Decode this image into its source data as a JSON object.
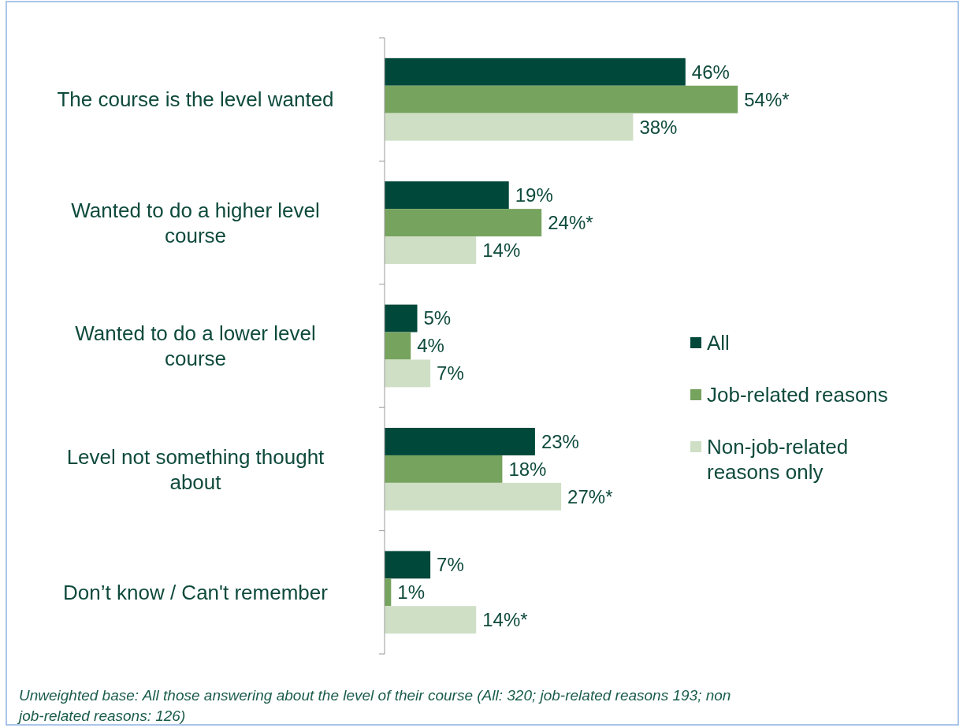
{
  "chart_data": {
    "type": "bar",
    "orientation": "horizontal",
    "categories": [
      "The course is the level wanted",
      "Wanted to do a higher level course",
      "Wanted to do a lower level course",
      "Level not something thought about",
      "Don’t know / Can't remember"
    ],
    "series": [
      {
        "name": "All",
        "color": "#00483a",
        "values": [
          46,
          19,
          5,
          23,
          7
        ],
        "value_labels": [
          "46%",
          "19%",
          "5%",
          "23%",
          "7%"
        ]
      },
      {
        "name": "Job-related reasons",
        "color": "#76a35e",
        "values": [
          54,
          24,
          4,
          18,
          1
        ],
        "value_labels": [
          "54%*",
          "24%*",
          "4%",
          "18%",
          "1%"
        ]
      },
      {
        "name": "Non-job-related reasons only",
        "color": "#cfdfc5",
        "values": [
          38,
          14,
          7,
          27,
          14
        ],
        "value_labels": [
          "38%",
          "14%",
          "7%",
          "27%*",
          "14%*"
        ]
      }
    ],
    "legend": "right",
    "annotations": [
      "Unweighted base: All those answering about the level of their course (All: 320; job-related reasons 193; non job-related reasons: 126)"
    ]
  }
}
